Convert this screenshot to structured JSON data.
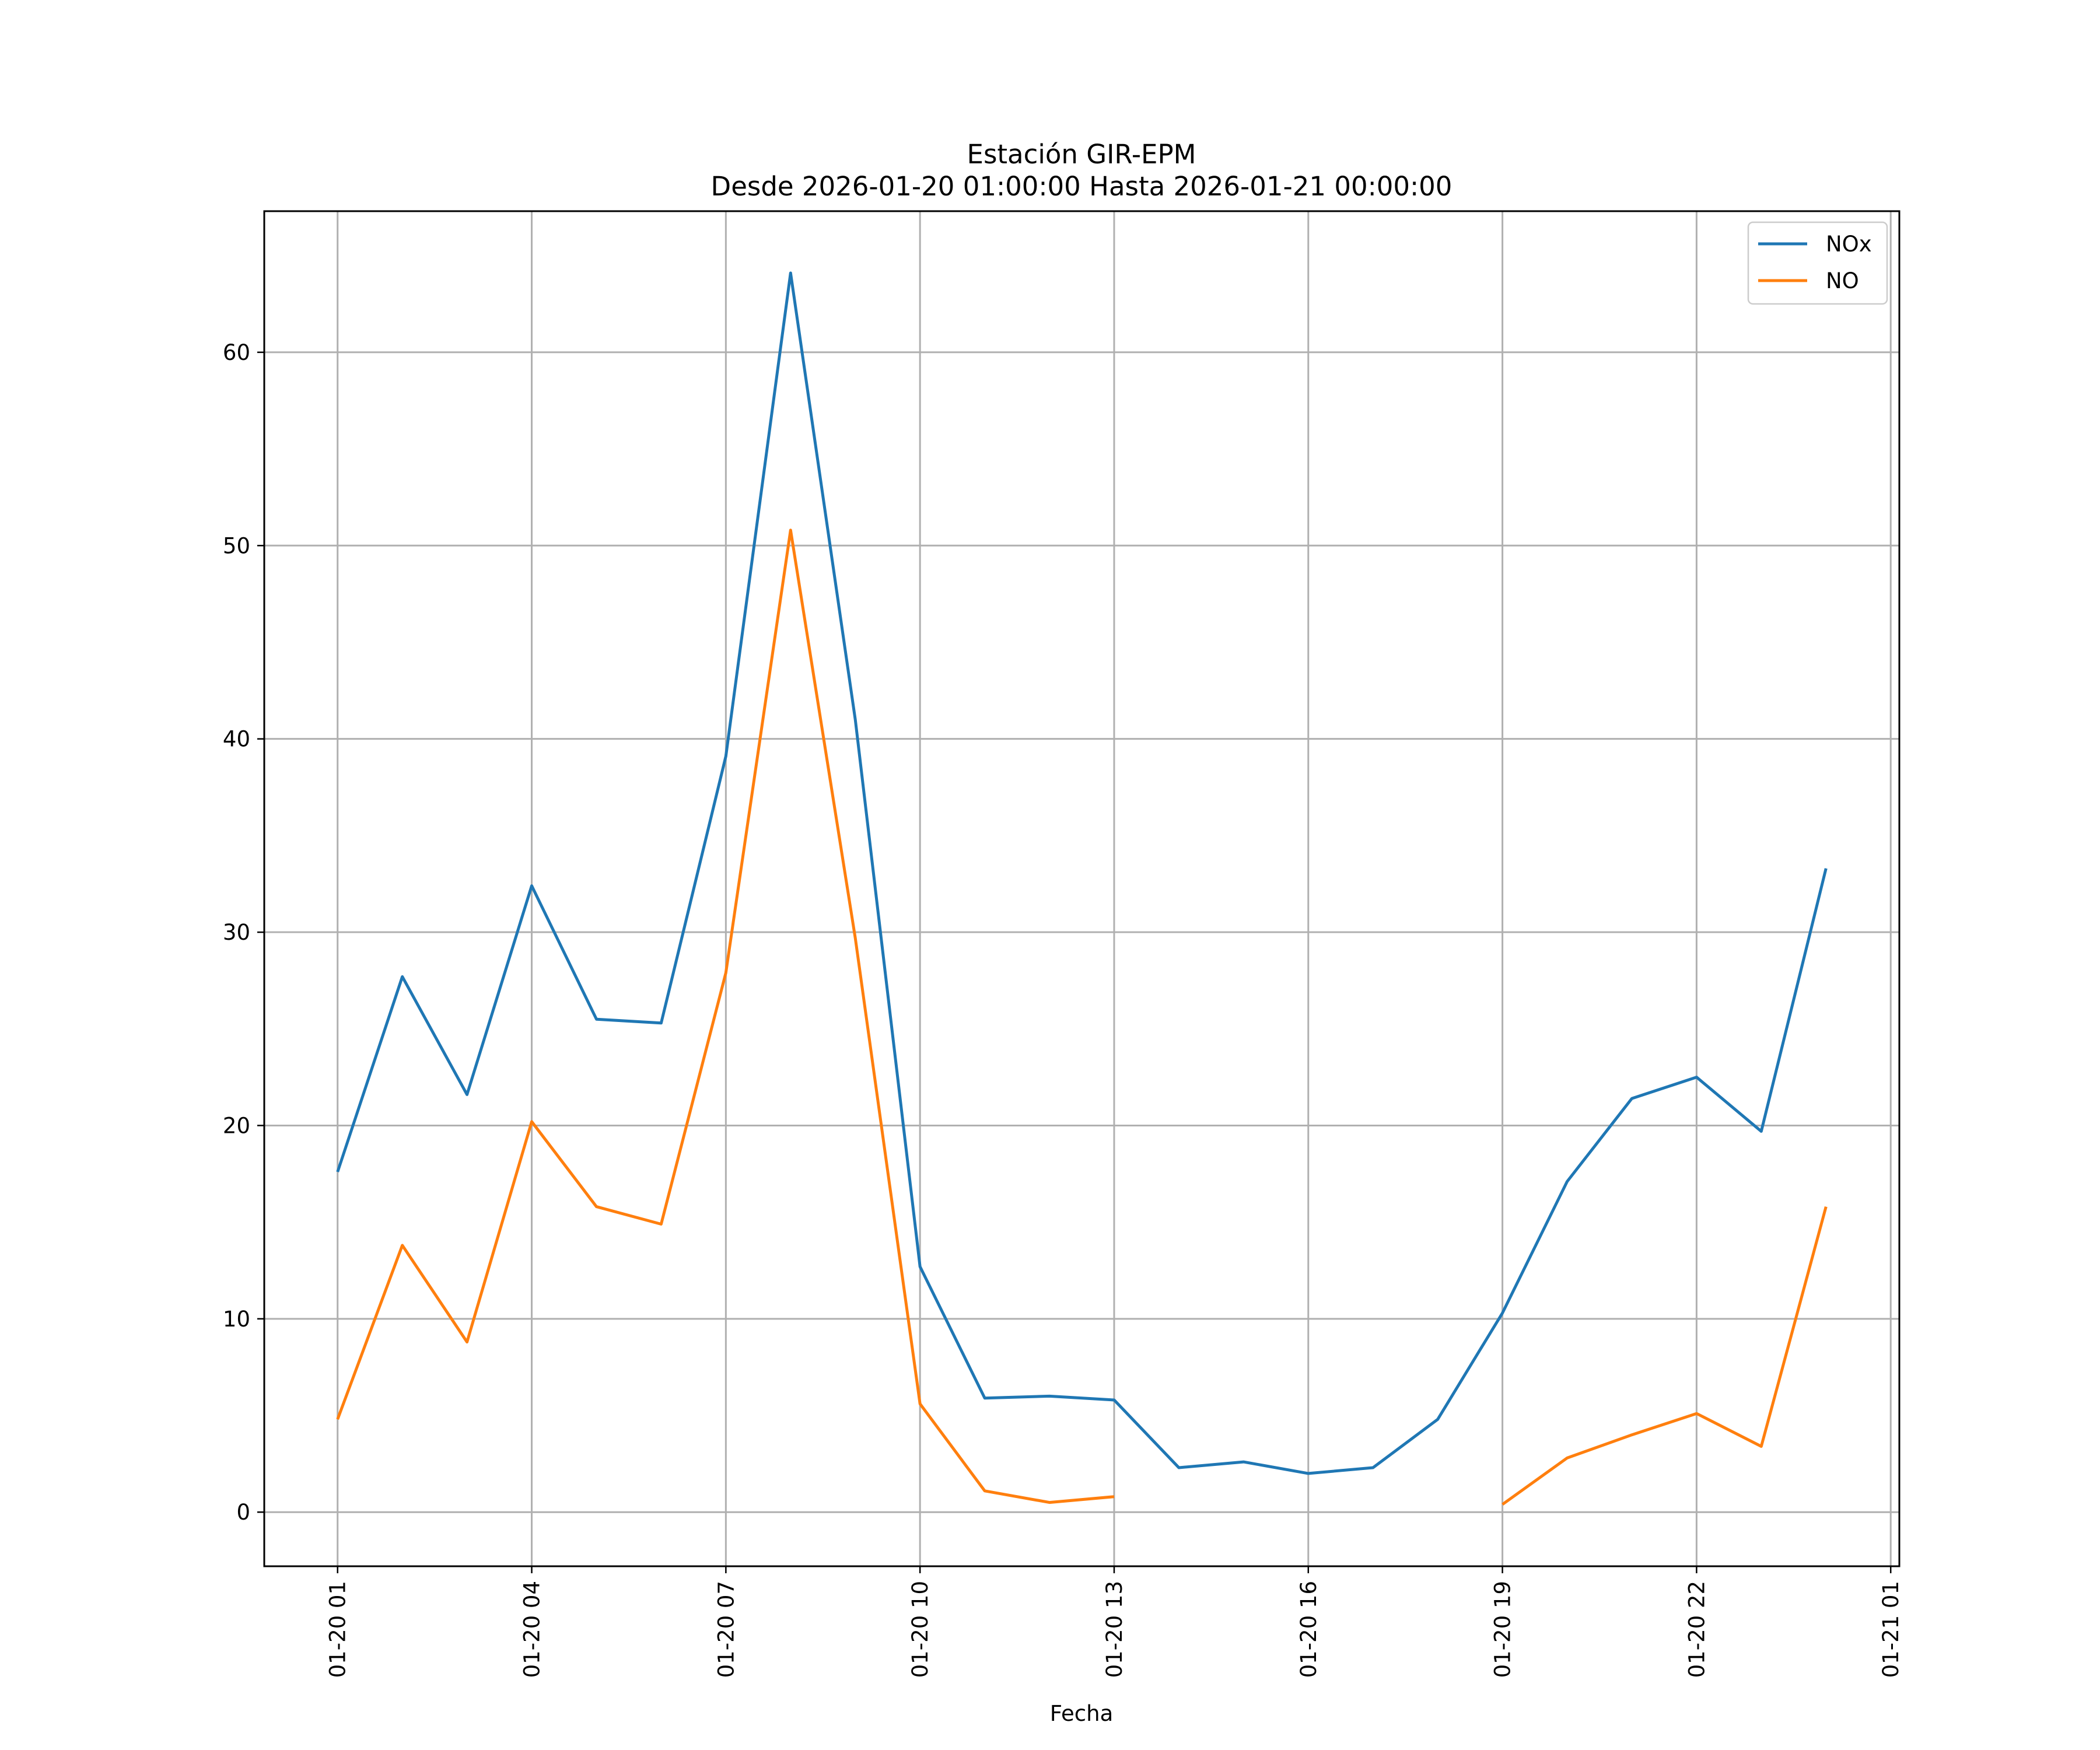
{
  "chart_data": {
    "type": "line",
    "title": "Estación GIR-EPM",
    "subtitle": "Desde 2026-01-20 01:00:00 Hasta 2026-01-21 00:00:00",
    "xlabel": "Fecha",
    "ylabel": "",
    "xlim": [
      "2026-01-19 23:52",
      "2026-01-21 01:08"
    ],
    "ylim": [
      -2.8,
      67.3
    ],
    "grid": true,
    "legend_position": "top-right",
    "x": [
      "2026-01-20 01:00",
      "2026-01-20 02:00",
      "2026-01-20 03:00",
      "2026-01-20 04:00",
      "2026-01-20 05:00",
      "2026-01-20 06:00",
      "2026-01-20 07:00",
      "2026-01-20 08:00",
      "2026-01-20 09:00",
      "2026-01-20 10:00",
      "2026-01-20 11:00",
      "2026-01-20 12:00",
      "2026-01-20 13:00",
      "2026-01-20 14:00",
      "2026-01-20 15:00",
      "2026-01-20 16:00",
      "2026-01-20 17:00",
      "2026-01-20 18:00",
      "2026-01-20 19:00",
      "2026-01-20 20:00",
      "2026-01-20 21:00",
      "2026-01-20 22:00",
      "2026-01-20 23:00",
      "2026-01-21 00:00"
    ],
    "x_ticks": [
      "01-20 01",
      "01-20 04",
      "01-20 07",
      "01-20 10",
      "01-20 13",
      "01-20 16",
      "01-20 19",
      "01-20 22",
      "01-21 01"
    ],
    "y_ticks": [
      "0",
      "10",
      "20",
      "30",
      "40",
      "50",
      "60"
    ],
    "series": [
      {
        "name": "NOx",
        "color": "#1f77b4",
        "values": [
          17.6,
          27.7,
          21.6,
          32.4,
          25.5,
          25.3,
          39.1,
          64.1,
          41.0,
          12.7,
          5.9,
          6.0,
          5.8,
          2.3,
          2.6,
          2.0,
          2.3,
          4.8,
          10.3,
          17.1,
          21.4,
          22.5,
          19.7,
          33.3
        ]
      },
      {
        "name": "NO",
        "color": "#ff7f0e",
        "values": [
          4.8,
          13.8,
          8.8,
          20.2,
          15.8,
          14.9,
          27.9,
          50.8,
          29.7,
          5.6,
          1.1,
          0.5,
          0.8,
          null,
          null,
          null,
          null,
          null,
          0.4,
          2.8,
          4.0,
          5.1,
          3.4,
          15.8
        ]
      }
    ]
  }
}
